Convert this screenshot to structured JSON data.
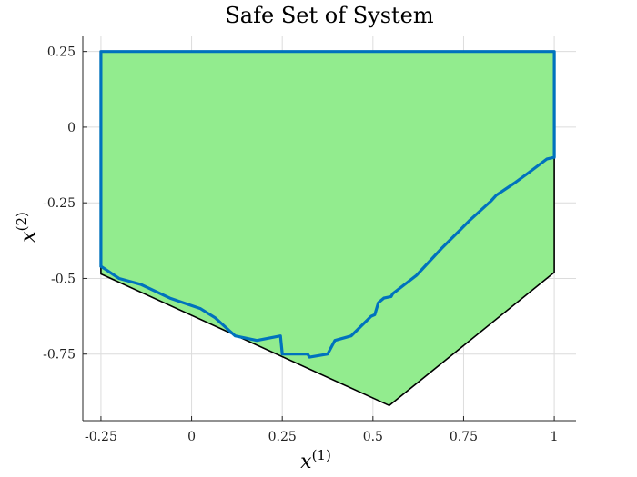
{
  "chart_data": {
    "type": "area",
    "title": "Safe Set of System",
    "xlabel": {
      "base": "x",
      "sup": "(1)"
    },
    "ylabel": {
      "base": "x",
      "sup": "(2)"
    },
    "xlim": [
      -0.3,
      1.06
    ],
    "ylim": [
      -0.97,
      0.3
    ],
    "xticks": [
      -0.25,
      0,
      0.25,
      0.5,
      0.75,
      1
    ],
    "xtick_labels": [
      "-0.25",
      "0",
      "0.25",
      "0.5",
      "0.75",
      "1"
    ],
    "yticks": [
      0.25,
      0,
      -0.25,
      -0.5,
      -0.75
    ],
    "ytick_labels": [
      "0.25",
      "0",
      "-0.25",
      "-0.5",
      "-0.75"
    ],
    "grid": true,
    "fill_color": "#92ec8e",
    "boundary_color": "#000000",
    "curve_color": "#0072bd",
    "series": [
      {
        "kind": "region-boundary",
        "points": [
          [
            -0.25,
            0.25
          ],
          [
            1.0,
            0.25
          ],
          [
            1.0,
            -0.48
          ],
          [
            0.545,
            -0.92
          ],
          [
            -0.25,
            -0.485
          ],
          [
            -0.25,
            0.25
          ]
        ]
      },
      {
        "kind": "safe-set-curve",
        "points": [
          [
            -0.25,
            -0.46
          ],
          [
            -0.25,
            0.25
          ],
          [
            1.0,
            0.25
          ],
          [
            1.0,
            -0.1
          ],
          [
            0.98,
            -0.105
          ],
          [
            0.93,
            -0.15
          ],
          [
            0.89,
            -0.185
          ],
          [
            0.84,
            -0.225
          ],
          [
            0.825,
            -0.245
          ],
          [
            0.765,
            -0.31
          ],
          [
            0.74,
            -0.34
          ],
          [
            0.69,
            -0.4
          ],
          [
            0.62,
            -0.49
          ],
          [
            0.555,
            -0.55
          ],
          [
            0.55,
            -0.56
          ],
          [
            0.53,
            -0.565
          ],
          [
            0.515,
            -0.58
          ],
          [
            0.505,
            -0.62
          ],
          [
            0.495,
            -0.625
          ],
          [
            0.44,
            -0.69
          ],
          [
            0.395,
            -0.705
          ],
          [
            0.375,
            -0.75
          ],
          [
            0.325,
            -0.76
          ],
          [
            0.32,
            -0.75
          ],
          [
            0.25,
            -0.75
          ],
          [
            0.245,
            -0.69
          ],
          [
            0.18,
            -0.705
          ],
          [
            0.12,
            -0.69
          ],
          [
            0.065,
            -0.63
          ],
          [
            0.025,
            -0.6
          ],
          [
            -0.06,
            -0.565
          ],
          [
            -0.14,
            -0.52
          ],
          [
            -0.2,
            -0.5
          ],
          [
            -0.25,
            -0.46
          ]
        ]
      }
    ]
  }
}
